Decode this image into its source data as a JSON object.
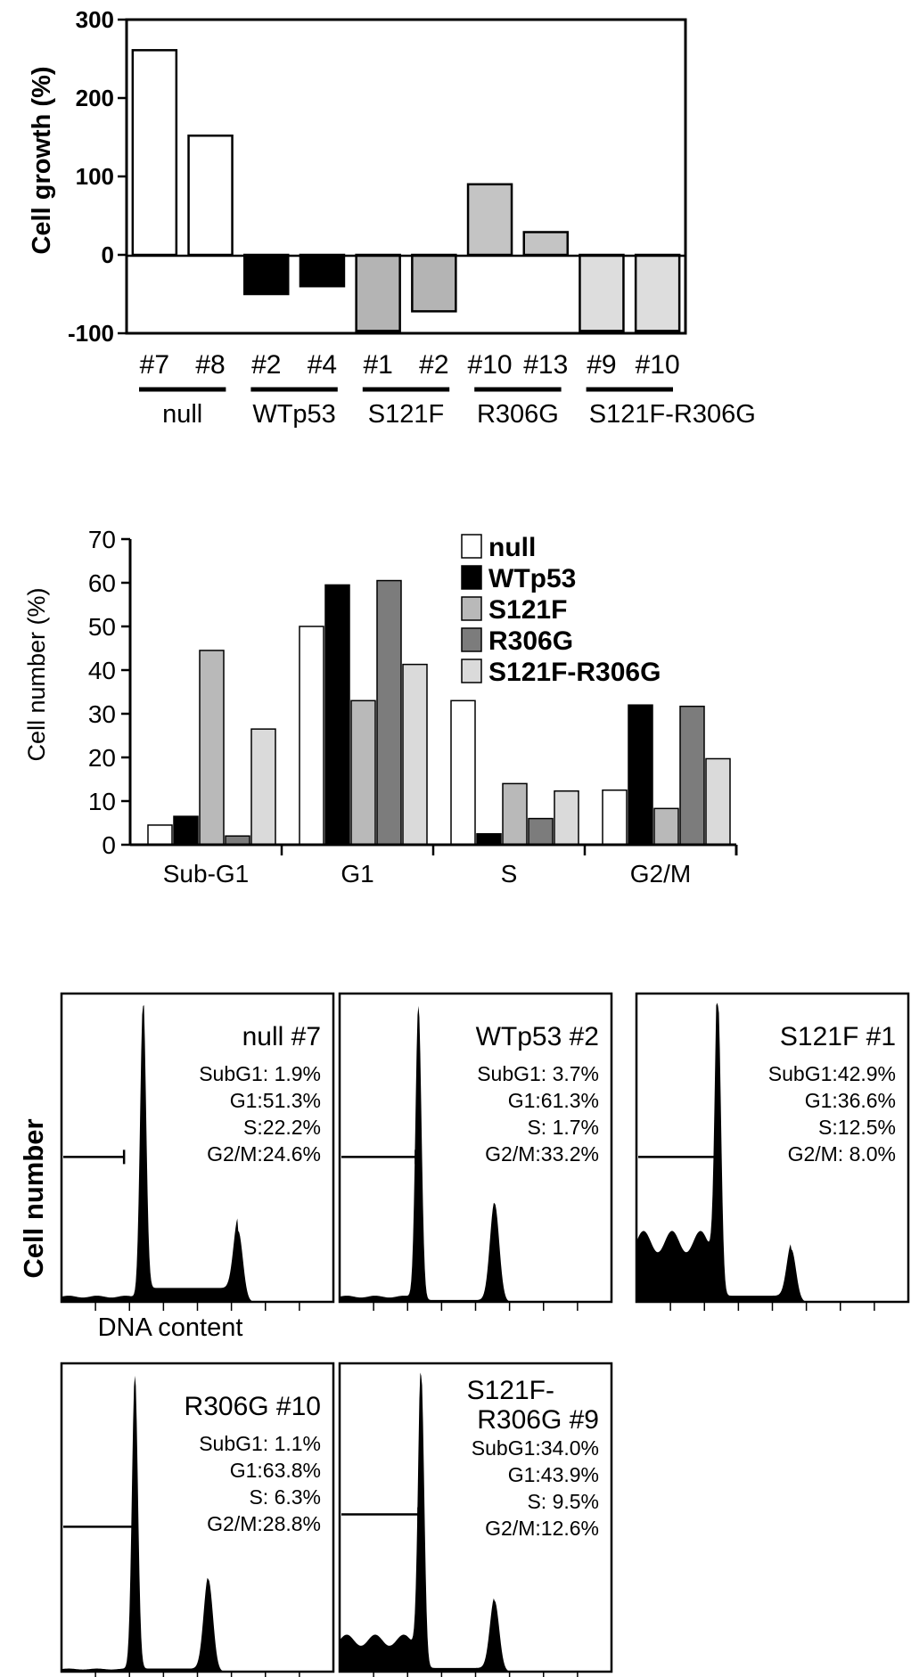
{
  "chart_data": [
    {
      "type": "bar",
      "ylabel": "Cell growth (%)",
      "ylim": [
        -100,
        300
      ],
      "yticks": [
        "300",
        "200",
        "100",
        "0",
        "-100"
      ],
      "categories": [
        "#7",
        "#8",
        "#2",
        "#4",
        "#1",
        "#2",
        "#10",
        "#13",
        "#9",
        "#10"
      ],
      "values": [
        261,
        152,
        -50,
        -40,
        -97,
        -72,
        90,
        29,
        -97,
        -97
      ],
      "groups": [
        {
          "name": "null",
          "color": "#ffffff"
        },
        {
          "name": "WTp53",
          "color": "#000000"
        },
        {
          "name": "S121F",
          "color": "#b4b4b4"
        },
        {
          "name": "R306G",
          "color": "#c4c4c4"
        },
        {
          "name": "S121F-R306G",
          "color": "#dddddd"
        }
      ],
      "grid": false
    },
    {
      "type": "bar",
      "ylabel": "Cell number (%)",
      "ylim": [
        0,
        70
      ],
      "yticks": [
        "70",
        "60",
        "50",
        "40",
        "30",
        "20",
        "10",
        "0"
      ],
      "categories": [
        "Sub-G1",
        "G1",
        "S",
        "G2/M"
      ],
      "series": [
        {
          "name": "null",
          "color": "#ffffff",
          "values": [
            4.5,
            50,
            33,
            12.5
          ]
        },
        {
          "name": "WTp53",
          "color": "#000000",
          "values": [
            6.5,
            59.5,
            2.5,
            32
          ]
        },
        {
          "name": "S121F",
          "color": "#b9b9b9",
          "values": [
            44.5,
            33,
            14,
            8.3
          ]
        },
        {
          "name": "R306G",
          "color": "#7c7c7c",
          "values": [
            2,
            60.5,
            6,
            31.7
          ]
        },
        {
          "name": "S121F-R306G",
          "color": "#dadada",
          "values": [
            26.5,
            41.3,
            12.3,
            19.7
          ]
        }
      ],
      "legend_placement": "top-right",
      "grid": false
    },
    {
      "type": "histogram",
      "ylabel": "Cell number",
      "xlabel": "DNA content",
      "panels": [
        {
          "title_lines": [
            "null #7"
          ],
          "stats": [
            "SubG1:  1.9%",
            "G1:51.3%",
            "S:22.2%",
            "G2/M:24.6%"
          ]
        },
        {
          "title_lines": [
            "WTp53 #2"
          ],
          "stats": [
            "SubG1:  3.7%",
            "G1:61.3%",
            "S:  1.7%",
            "G2/M:33.2%"
          ]
        },
        {
          "title_lines": [
            "S121F #1"
          ],
          "stats": [
            "SubG1:42.9%",
            "G1:36.6%",
            "S:12.5%",
            "G2/M:  8.0%"
          ]
        },
        {
          "title_lines": [
            "R306G #10"
          ],
          "stats": [
            "SubG1:  1.1%",
            "G1:63.8%",
            "S:  6.3%",
            "G2/M:28.8%"
          ]
        },
        {
          "title_lines": [
            "S121F-",
            "R306G #9"
          ],
          "stats": [
            "SubG1:34.0%",
            "G1:43.9%",
            "S:  9.5%",
            "G2/M:12.6%"
          ]
        }
      ]
    }
  ]
}
